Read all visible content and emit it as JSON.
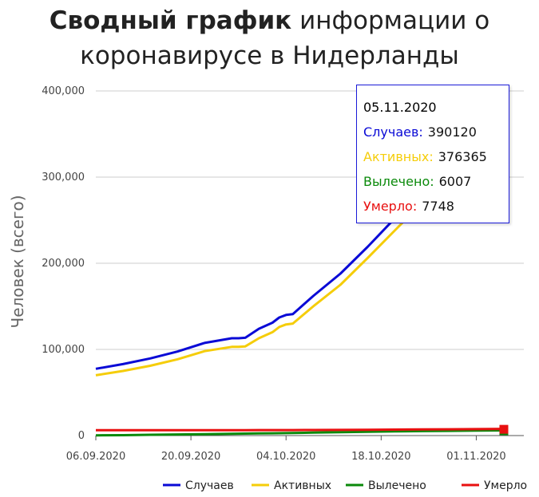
{
  "title": {
    "bold": "Сводный график",
    "rest": "информации о коронавирусе в Нидерланды"
  },
  "chart_data": {
    "type": "line",
    "ylabel": "Человек (всего)",
    "ylim": [
      0,
      400000
    ],
    "yticks": [
      "0",
      "100,000",
      "200,000",
      "300,000",
      "400,000"
    ],
    "xticks": [
      "06.09.2020",
      "20.09.2020",
      "04.10.2020",
      "18.10.2020",
      "01.11.2020"
    ],
    "x": [
      "2020-09-06",
      "2020-09-10",
      "2020-09-14",
      "2020-09-18",
      "2020-09-22",
      "2020-09-26",
      "2020-09-27",
      "2020-09-28",
      "2020-09-30",
      "2020-10-02",
      "2020-10-03",
      "2020-10-04",
      "2020-10-05",
      "2020-10-08",
      "2020-10-12",
      "2020-10-16",
      "2020-10-20",
      "2020-10-24",
      "2020-10-28",
      "2020-11-01",
      "2020-11-05"
    ],
    "grid": true,
    "legend_position": "bottom",
    "series": [
      {
        "name": "Случаев",
        "color": "#0a0ad6",
        "values": [
          77500,
          83000,
          89500,
          97500,
          107500,
          113000,
          113000,
          113500,
          124000,
          131000,
          137000,
          140000,
          141000,
          162000,
          188000,
          219000,
          252000,
          285000,
          319000,
          355000,
          390120
        ]
      },
      {
        "name": "Активных",
        "color": "#f5cd0a",
        "values": [
          70000,
          75000,
          81000,
          88500,
          98000,
          103000,
          103000,
          103500,
          113000,
          120000,
          126000,
          129000,
          130000,
          150000,
          175000,
          206000,
          238000,
          270000,
          304000,
          340000,
          376365
        ]
      },
      {
        "name": "Вылечено",
        "color": "#0b8a0b",
        "values": [
          300,
          500,
          900,
          1300,
          1700,
          2100,
          2200,
          2300,
          2500,
          2700,
          2800,
          2900,
          3000,
          3400,
          3900,
          4400,
          4800,
          5200,
          5500,
          5800,
          6007
        ]
      },
      {
        "name": "Умерло",
        "color": "#e81010",
        "values": [
          6200,
          6220,
          6240,
          6260,
          6290,
          6310,
          6320,
          6330,
          6350,
          6370,
          6380,
          6390,
          6400,
          6450,
          6550,
          6700,
          6900,
          7100,
          7300,
          7500,
          7748
        ]
      }
    ]
  },
  "tooltip": {
    "date": "05.11.2020",
    "rows": [
      {
        "label": "Случаев:",
        "value": "390120",
        "color": "#0a0ad6"
      },
      {
        "label": "Активных:",
        "value": "376365",
        "color": "#f5cd0a"
      },
      {
        "label": "Вылечено:",
        "value": "6007",
        "color": "#0b8a0b"
      },
      {
        "label": "Умерло:",
        "value": "7748",
        "color": "#e81010"
      }
    ]
  }
}
